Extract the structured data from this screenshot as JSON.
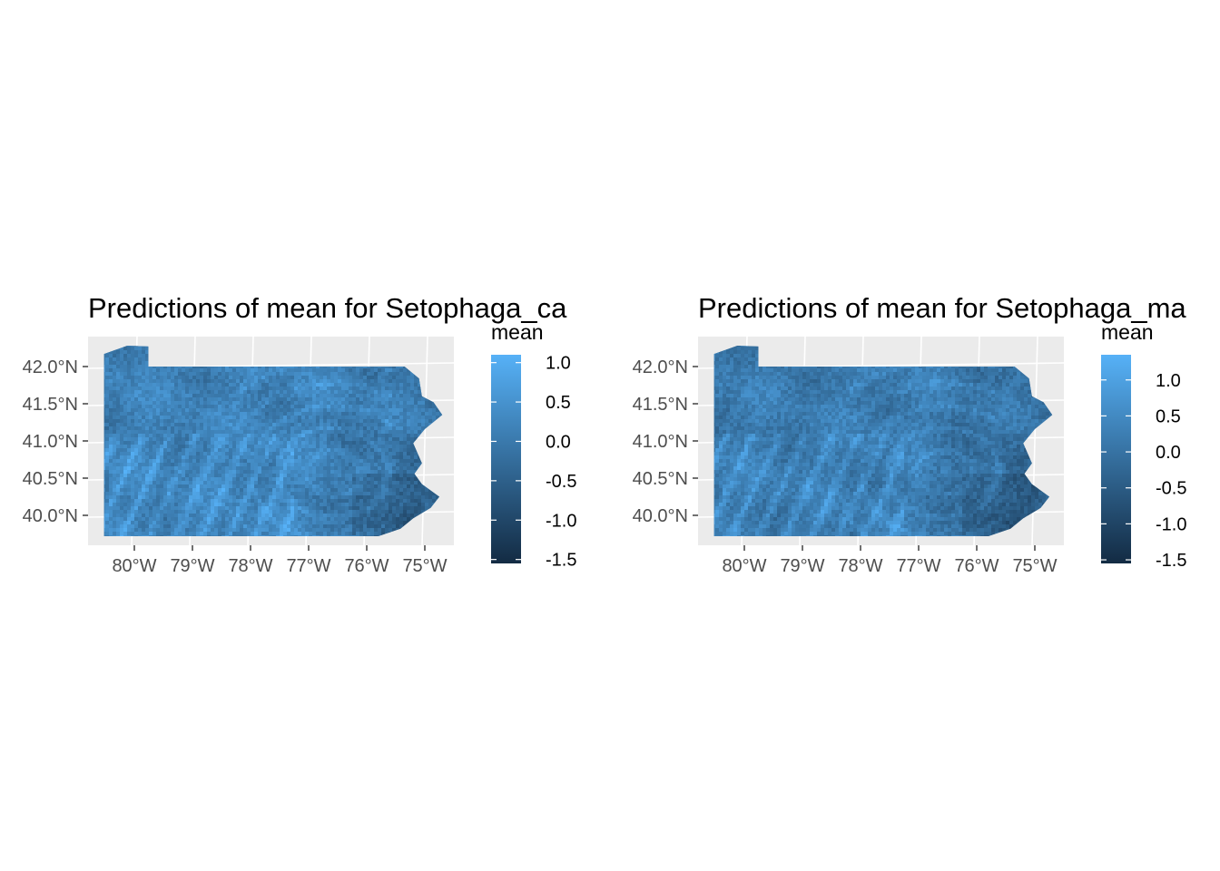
{
  "chart_data": [
    {
      "type": "heatmap",
      "title": "Predictions of mean for Setophaga_ca",
      "legend_title": "mean",
      "legend_placement": "right",
      "x_ticks": [
        "80°W",
        "79°W",
        "78°W",
        "77°W",
        "76°W",
        "75°W"
      ],
      "x_tick_values": [
        -80,
        -79,
        -78,
        -77,
        -76,
        -75
      ],
      "y_ticks": [
        "42.0°N",
        "41.5°N",
        "41.0°N",
        "40.5°N",
        "40.0°N"
      ],
      "y_tick_values": [
        42.0,
        41.5,
        41.0,
        40.5,
        40.0
      ],
      "legend_ticks": [
        "1.0",
        "0.5",
        "0.0",
        "-0.5",
        "-1.0",
        "-1.5"
      ],
      "legend_tick_values": [
        1.0,
        0.5,
        0.0,
        -0.5,
        -1.0,
        -1.5
      ],
      "value_range": [
        -1.55,
        1.1
      ],
      "low_color": "#132b43",
      "high_color": "#56b1f7",
      "panel_bg": "#ebebeb"
    },
    {
      "type": "heatmap",
      "title": "Predictions of mean for Setophaga_ma",
      "legend_title": "mean",
      "legend_placement": "right",
      "x_ticks": [
        "80°W",
        "79°W",
        "78°W",
        "77°W",
        "76°W",
        "75°W"
      ],
      "x_tick_values": [
        -80,
        -79,
        -78,
        -77,
        -76,
        -75
      ],
      "y_ticks": [
        "42.0°N",
        "41.5°N",
        "41.0°N",
        "40.5°N",
        "40.0°N"
      ],
      "y_tick_values": [
        42.0,
        41.5,
        41.0,
        40.5,
        40.0
      ],
      "legend_ticks": [
        "1.0",
        "0.5",
        "0.0",
        "-0.5",
        "-1.0",
        "-1.5"
      ],
      "legend_tick_values": [
        1.0,
        0.5,
        0.0,
        -0.5,
        -1.0,
        -1.5
      ],
      "value_range": [
        -1.55,
        1.35
      ],
      "low_color": "#132b43",
      "high_color": "#56b1f7",
      "panel_bg": "#ebebeb"
    }
  ]
}
